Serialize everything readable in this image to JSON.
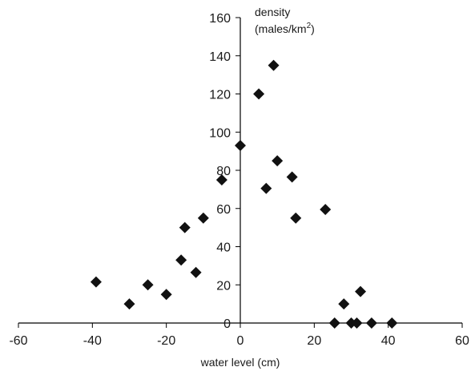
{
  "chart_data": {
    "type": "scatter",
    "xlabel": "water level (cm)",
    "ylabel": {
      "line1": "density",
      "line2_prefix": "(males/km",
      "line2_sup": "2",
      "line2_suffix": ")"
    },
    "xlim": [
      -60,
      60
    ],
    "ylim": [
      0,
      160
    ],
    "x_ticks": [
      -60,
      -40,
      -20,
      0,
      20,
      40,
      60
    ],
    "y_ticks": [
      0,
      20,
      40,
      60,
      80,
      100,
      120,
      140,
      160
    ],
    "marker": "diamond",
    "marker_color": "#111111",
    "grid": false,
    "points": [
      {
        "x": -39,
        "y": 21.5
      },
      {
        "x": -30,
        "y": 10
      },
      {
        "x": -25,
        "y": 20
      },
      {
        "x": -20,
        "y": 15
      },
      {
        "x": -16,
        "y": 33
      },
      {
        "x": -15,
        "y": 50
      },
      {
        "x": -12,
        "y": 26.5
      },
      {
        "x": -10,
        "y": 55
      },
      {
        "x": -5,
        "y": 75
      },
      {
        "x": 0,
        "y": 93
      },
      {
        "x": 5,
        "y": 120
      },
      {
        "x": 7,
        "y": 70.5
      },
      {
        "x": 9,
        "y": 135
      },
      {
        "x": 10,
        "y": 85
      },
      {
        "x": 14,
        "y": 76.5
      },
      {
        "x": 15,
        "y": 55
      },
      {
        "x": 23,
        "y": 59.5
      },
      {
        "x": 25.5,
        "y": 0
      },
      {
        "x": 28,
        "y": 10
      },
      {
        "x": 30,
        "y": 0
      },
      {
        "x": 31.5,
        "y": 0
      },
      {
        "x": 32.5,
        "y": 16.5
      },
      {
        "x": 35.5,
        "y": 0
      },
      {
        "x": 41,
        "y": 0
      }
    ]
  }
}
